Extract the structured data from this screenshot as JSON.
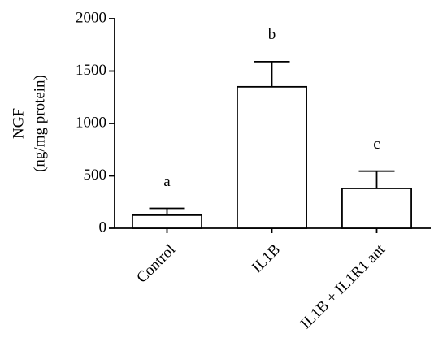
{
  "chart_data": {
    "type": "bar",
    "ylabel": [
      "NGF",
      "(ng/mg protein)"
    ],
    "categories": [
      "Control",
      "IL1B",
      "IL1B + IL1R1 ant"
    ],
    "values": [
      125,
      1350,
      380
    ],
    "errors": [
      65,
      240,
      165
    ],
    "annotations": [
      "a",
      "b",
      "c"
    ],
    "color": "#ffffff",
    "ylim": [
      0,
      2000
    ],
    "yticks": [
      0,
      500,
      1000,
      1500,
      2000
    ],
    "grid": false
  }
}
